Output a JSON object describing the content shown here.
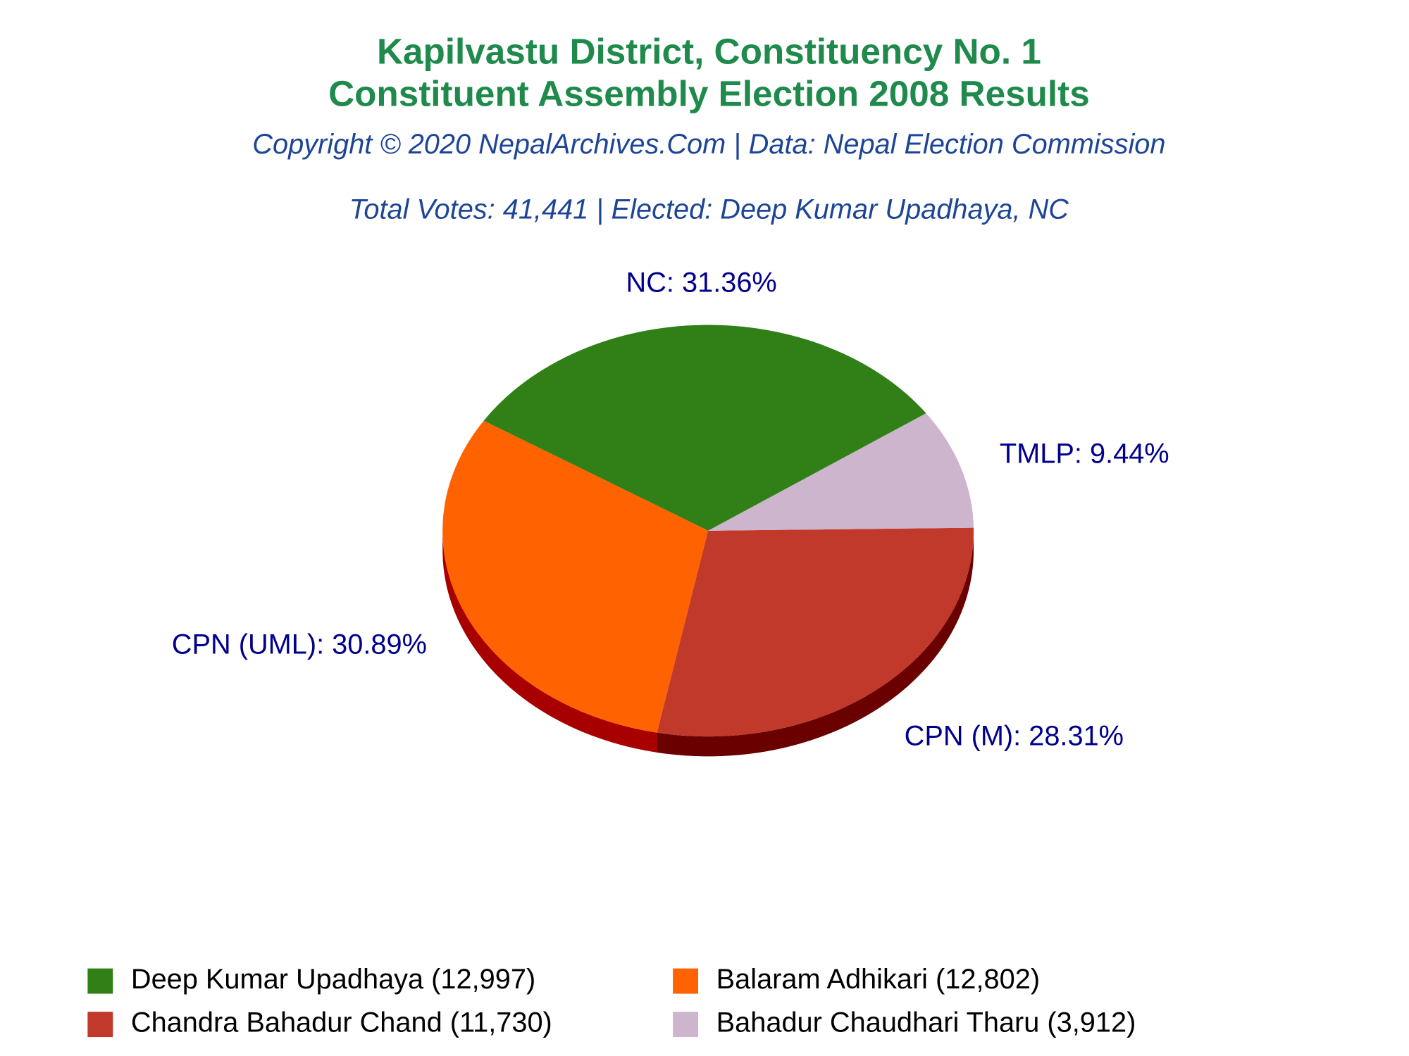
{
  "chart_data": {
    "type": "pie",
    "title": [
      "Kapilvastu District, Constituency No. 1",
      "Constituent Assembly Election 2008 Results"
    ],
    "subtitle": [
      "Copyright © 2020 NepalArchives.Com | Data: Nepal Election Commission",
      "Total Votes: 41,441 | Elected: Deep Kumar Upadhaya, NC"
    ],
    "categories": [
      "NC",
      "CPN (UML)",
      "CPN (M)",
      "TMLP"
    ],
    "values": [
      31.36,
      30.89,
      28.31,
      9.44
    ],
    "value_labels": [
      "NC: 31.36%",
      "CPN (UML): 30.89%",
      "CPN (M): 28.31%",
      "TMLP: 9.44%"
    ],
    "colors": [
      "#318017",
      "#ff6200",
      "#c0392b",
      "#cdb5cd"
    ],
    "side_colors": [
      "#1e500e",
      "#a80000",
      "#6a0000",
      "#806f80"
    ],
    "legend": [
      "Deep Kumar Upadhaya (12,997)",
      "Balaram Adhikari (12,802)",
      "Chandra Bahadur Chand (11,730)",
      "Bahadur Chaudhari Tharu (3,912)"
    ]
  }
}
